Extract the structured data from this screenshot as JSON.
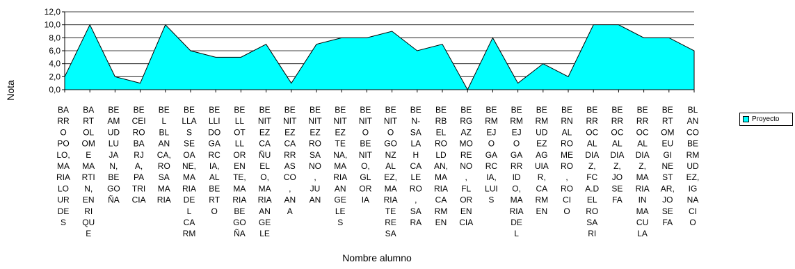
{
  "chart_data": {
    "type": "area",
    "title": "",
    "xlabel": "Nombre alumno",
    "ylabel": "Nota",
    "ylim": [
      0,
      12
    ],
    "yticks": [
      "0,0",
      "2,0",
      "4,0",
      "6,0",
      "8,0",
      "10,0",
      "12,0"
    ],
    "grid": true,
    "legend_position": "right",
    "categories": [
      "BARRO POLO, MARIA LOURDES",
      "BARTOLOME MARTIN, ENRIQUE",
      "BEAMUD LUJA N, BEGOÑA",
      "BECEIRO BARJA, PATRICIA",
      "BEL BLANCA, ROSA MARIA",
      "BELLAS SEOANE, MARIA DE L CARM",
      "BELLIDO GARCIA, ALBERTO",
      "BELLOTLLOREN TE, MARIA BEGOÑA",
      "BENITEZ CAÑUELO, MARIA ANGELE",
      "BENITEZ CARRASCO, ANA",
      "BENITEZ ROSANO, JUAN",
      "BENITEZ TENA, MARIA ANGELES",
      "BENITO BENITO, GLORIA",
      "BENITO GONZALEZ, MARIA TERESA",
      "BENSALAH CALERO, SARA",
      "BERBEL ROLDAN, MARIA CARMEN",
      "BERGAZ MORENO, FLORENCIA",
      "BERMEJO GARCIA, LUIS",
      "BERMEJO GARRIDO, MARIA DE L",
      "BERMUDEZ AGUIAR, CARMEN",
      "BERNAL ROMERO, ROCIO",
      "BEROCAL DIAZ, FCA.DEL ROSARI",
      "BERROCAL DIAZ, JOSEFA",
      "BERROCAL DIAZ, MARIA INMACULA",
      "BERTOMEU GINESTAR, JOSEFA",
      "BLANCO BERMUDEZ, IGNACIO"
    ],
    "x_tick_labels": [
      "BA RR O PO LO, MA RIA LO UR DE S",
      "BA RT OL OM E MA RTI N, EN RI QU E",
      "BE AM UD LU JA N, BE GO ÑA",
      "BE CEI RO BA RJ A, PA TRI CIA",
      "BE L BL AN CA, RO SA MA RIA",
      "BE LLA S SE OA NE, MA RIA DE L CA RM",
      "BE LLI DO GA RC IA, AL BE RT O",
      "BE LL OT LL OR EN TE, MA RIA BE GO ÑA",
      "BE NIT EZ CA ÑU EL O, MA RIA AN GE LE",
      "BE NIT EZ CA RR AS CO , AN A",
      "BE NIT EZ RO SA NO , JU AN",
      "BE NIT EZ TE NA, MA RIA AN GE LE S",
      "BE NIT O BE NIT O, GL OR IA",
      "BE NIT O GO NZ AL EZ, MA RIA TE RE SA",
      "BE N- SA LA H CA LE RO , SA RA",
      "BE RB EL RO LD AN, MA RIA CA RM EN",
      "BE RG AZ MO RE NO , FL OR EN CIA",
      "BE RM EJ O GA RC IA, LUI S",
      "BE RM EJ O GA RR ID O, MA RIA DE L",
      "BE RM UD EZ AG UIA R, CA RM EN",
      "BE RN AL RO ME RO , RO CI O",
      "BE RR OC AL DIA Z, FC A.D EL RO SA RI",
      "BE RR OC AL DIA Z, JO SE FA",
      "BE RR OC AL DIA Z, MA RIA IN MA CU LA",
      "BE RT OM EU GI NE ST AR, JO SE FA",
      "BL AN CO BE RM UD EZ, IG NA CI O"
    ],
    "series": [
      {
        "name": "Proyecto",
        "values": [
          2,
          10,
          2,
          1,
          10,
          6,
          5,
          5,
          7,
          1,
          7,
          8,
          8,
          9,
          6,
          7,
          0,
          8,
          1,
          4,
          2,
          10,
          10,
          8,
          8,
          6
        ]
      }
    ],
    "colors": {
      "fill": "#00ffff",
      "stroke": "#000000",
      "grid": "#000000"
    }
  }
}
